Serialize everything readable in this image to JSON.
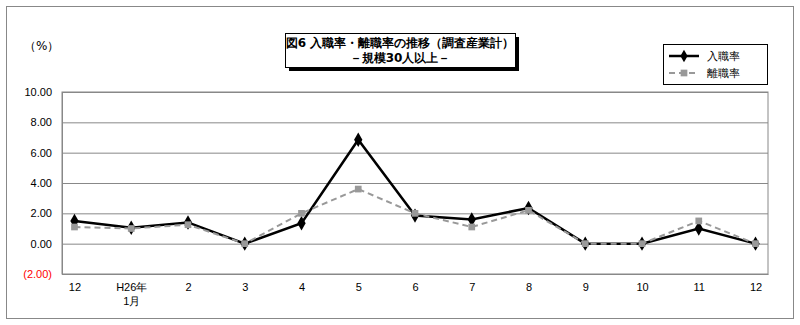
{
  "chart_data": {
    "type": "line",
    "title": "図6 入職率・離職率の推移（調査産業計）",
    "subtitle": "－規模30人以上－",
    "y_label": "（%）",
    "categories": [
      "12",
      "H26年\n1月",
      "2",
      "3",
      "4",
      "5",
      "6",
      "7",
      "8",
      "9",
      "10",
      "11",
      "12"
    ],
    "series": [
      {
        "name": "入職率",
        "color": "#000000",
        "marker": "diamond",
        "line_style": "solid",
        "values": [
          1.5,
          1.05,
          1.4,
          0.0,
          1.35,
          6.85,
          1.85,
          1.6,
          2.35,
          0.0,
          0.0,
          1.0,
          0.0
        ]
      },
      {
        "name": "離職率",
        "color": "#999999",
        "marker": "square",
        "line_style": "dashed",
        "values": [
          1.1,
          1.0,
          1.25,
          0.0,
          2.0,
          3.6,
          2.0,
          1.1,
          2.2,
          0.0,
          0.0,
          1.5,
          0.0
        ]
      }
    ],
    "ylim": [
      -2,
      10
    ],
    "yticks": [
      {
        "value": -2,
        "label": "(2.00)"
      },
      {
        "value": 0,
        "label": "0.00"
      },
      {
        "value": 2,
        "label": "2.00"
      },
      {
        "value": 4,
        "label": "4.00"
      },
      {
        "value": 6,
        "label": "6.00"
      },
      {
        "value": 8,
        "label": "8.00"
      },
      {
        "value": 10,
        "label": "10.00"
      }
    ],
    "grid": true,
    "legend": "top-right"
  }
}
